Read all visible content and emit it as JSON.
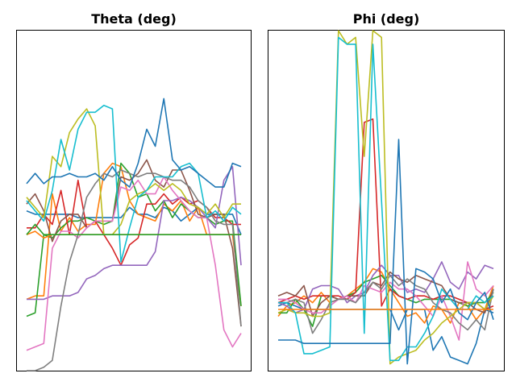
{
  "chart_data": [
    {
      "type": "line",
      "title": "Theta (deg)",
      "xlabel": "",
      "ylabel": "",
      "grid": false,
      "ticks": false,
      "x": [
        0,
        1,
        2,
        3,
        4,
        5,
        6,
        7,
        8,
        9,
        10,
        11,
        12,
        13,
        14,
        15,
        16,
        17,
        18,
        19,
        20,
        21,
        22,
        23,
        24,
        25
      ],
      "ylim": [
        0,
        100
      ],
      "colors": [
        "#1f77b4",
        "#ff7f0e",
        "#2ca02c",
        "#d62728",
        "#9467bd",
        "#8c564b",
        "#e377c2",
        "#7f7f7f",
        "#bcbd22",
        "#17becf"
      ],
      "series": [
        {
          "values": [
            47,
            46,
            46,
            46,
            46,
            46,
            45,
            45,
            45,
            45,
            45,
            45,
            48,
            46,
            46,
            45,
            48,
            47,
            44,
            46,
            48,
            46,
            46,
            46,
            46,
            40
          ]
        },
        {
          "values": [
            21,
            22,
            22,
            52,
            41,
            45,
            41,
            43,
            43,
            58,
            61,
            60,
            50,
            46,
            45,
            44,
            49,
            47,
            50,
            44,
            48,
            40,
            40,
            40,
            40,
            19
          ]
        },
        {
          "values": [
            16,
            17,
            40,
            39,
            42,
            44,
            44,
            45,
            44,
            43,
            44,
            61,
            58,
            51,
            52,
            47,
            50,
            45,
            49,
            47,
            45,
            45,
            43,
            44,
            44,
            19
          ]
        },
        {
          "values": [
            42,
            42,
            46,
            43,
            53,
            40,
            56,
            42,
            44,
            40,
            36,
            31,
            37,
            39,
            49,
            49,
            52,
            49,
            51,
            49,
            50,
            48,
            45,
            45,
            43,
            43
          ]
        },
        {
          "values": [
            21,
            21,
            21,
            22,
            22,
            22,
            23,
            27,
            28,
            30,
            31,
            31,
            31,
            31,
            31,
            35,
            50,
            50,
            51,
            50,
            48,
            45,
            42,
            56,
            60,
            31
          ]
        },
        {
          "values": [
            49,
            52,
            47,
            38,
            44,
            46,
            46,
            42,
            44,
            44,
            44,
            57,
            56,
            58,
            62,
            56,
            54,
            59,
            59,
            53,
            46,
            45,
            46,
            46,
            36,
            13
          ]
        },
        {
          "values": [
            6,
            7,
            8,
            36,
            41,
            41,
            39,
            42,
            44,
            44,
            44,
            54,
            53,
            56,
            52,
            52,
            57,
            53,
            50,
            47,
            45,
            45,
            31,
            12,
            7,
            11
          ]
        },
        {
          "values": [
            0,
            0,
            1,
            3,
            19,
            32,
            40,
            51,
            55,
            58,
            57,
            59,
            58,
            57,
            58,
            58,
            57,
            56,
            56,
            54,
            50,
            48,
            44,
            43,
            43,
            13
          ]
        },
        {
          "values": [
            51,
            48,
            45,
            63,
            60,
            70,
            74,
            77,
            72,
            40,
            40,
            43,
            50,
            52,
            53,
            55,
            53,
            55,
            53,
            49,
            48,
            46,
            49,
            45,
            49,
            49
          ]
        },
        {
          "values": [
            50,
            47,
            44,
            53,
            68,
            59,
            71,
            76,
            76,
            78,
            77,
            32,
            42,
            51,
            53,
            57,
            57,
            57,
            60,
            61,
            58,
            45,
            47,
            44,
            48,
            46
          ]
        },
        {
          "values": [
            55,
            58,
            55,
            57,
            57,
            58,
            57,
            57,
            58,
            56,
            60,
            56,
            54,
            61,
            71,
            66,
            80,
            62,
            59,
            60,
            58,
            56,
            54,
            54,
            61,
            60
          ]
        },
        {
          "values": [
            40,
            41,
            39,
            40,
            40,
            40,
            40,
            40,
            40,
            40,
            40,
            40,
            40,
            40,
            40,
            40,
            40,
            40,
            40,
            40,
            40,
            40,
            40,
            40,
            40,
            40
          ]
        },
        {
          "values": [
            40,
            43,
            40,
            40,
            40,
            40,
            40,
            40,
            40,
            40,
            40,
            40,
            40,
            40,
            40,
            40,
            40,
            40,
            40,
            40,
            40,
            40,
            40,
            40,
            40,
            40
          ]
        }
      ]
    },
    {
      "type": "line",
      "title": "Phi (deg)",
      "xlabel": "",
      "ylabel": "",
      "grid": false,
      "ticks": false,
      "x": [
        0,
        1,
        2,
        3,
        4,
        5,
        6,
        7,
        8,
        9,
        10,
        11,
        12,
        13,
        14,
        15,
        16,
        17,
        18,
        19,
        20,
        21,
        22,
        23,
        24,
        25
      ],
      "ylim": [
        0,
        100
      ],
      "colors": [
        "#1f77b4",
        "#ff7f0e",
        "#2ca02c",
        "#d62728",
        "#9467bd",
        "#8c564b",
        "#e377c2",
        "#7f7f7f",
        "#bcbd22",
        "#17becf"
      ],
      "series": [
        {
          "values": [
            19,
            20,
            19,
            18,
            18,
            18,
            18,
            18,
            18,
            18,
            18,
            18,
            18,
            18,
            12,
            18,
            18,
            18,
            6,
            10,
            4,
            3,
            2,
            8,
            18,
            17
          ]
        },
        {
          "values": [
            16,
            19,
            20,
            22,
            20,
            23,
            20,
            21,
            22,
            24,
            26,
            30,
            29,
            24,
            20,
            16,
            17,
            14,
            19,
            18,
            14,
            20,
            19,
            15,
            18,
            25
          ]
        },
        {
          "values": [
            17,
            17,
            21,
            18,
            13,
            22,
            22,
            21,
            22,
            23,
            26,
            27,
            28,
            25,
            22,
            21,
            20,
            21,
            21,
            21,
            21,
            20,
            19,
            20,
            20,
            23
          ]
        },
        {
          "values": [
            20,
            21,
            22,
            21,
            22,
            22,
            22,
            22,
            21,
            23,
            73,
            74,
            19,
            24,
            22,
            21,
            22,
            22,
            21,
            22,
            22,
            21,
            20,
            20,
            18,
            19
          ]
        },
        {
          "values": [
            20,
            19,
            17,
            18,
            24,
            25,
            25,
            24,
            20,
            22,
            23,
            28,
            31,
            28,
            28,
            23,
            24,
            23,
            27,
            32,
            26,
            24,
            29,
            27,
            31,
            30
          ]
        },
        {
          "values": [
            22,
            23,
            22,
            25,
            16,
            20,
            22,
            21,
            22,
            22,
            22,
            26,
            25,
            29,
            27,
            26,
            28,
            27,
            26,
            25,
            21,
            20,
            20,
            18,
            17,
            24
          ]
        },
        {
          "values": [
            21,
            21,
            20,
            18,
            17,
            17,
            19,
            21,
            22,
            20,
            25,
            24,
            23,
            26,
            24,
            24,
            22,
            19,
            16,
            22,
            16,
            9,
            32,
            24,
            22,
            25
          ]
        },
        {
          "values": [
            20,
            20,
            21,
            20,
            11,
            15,
            20,
            21,
            21,
            20,
            23,
            26,
            24,
            28,
            25,
            27,
            25,
            24,
            20,
            18,
            17,
            14,
            12,
            15,
            12,
            24
          ]
        },
        {
          "values": [
            17,
            18,
            17,
            17,
            16,
            16,
            17,
            100,
            96,
            98,
            63,
            100,
            98,
            2,
            4,
            5,
            6,
            9,
            11,
            14,
            16,
            18,
            20,
            20,
            18,
            22
          ]
        },
        {
          "values": [
            20,
            20,
            17,
            5,
            5,
            6,
            7,
            98,
            96,
            96,
            11,
            96,
            50,
            3,
            3,
            7,
            7,
            11,
            16,
            24,
            21,
            18,
            18,
            22,
            20,
            22
          ]
        },
        {
          "values": [
            9,
            9,
            9,
            8,
            8,
            8,
            8,
            8,
            8,
            8,
            8,
            8,
            8,
            8,
            68,
            2,
            30,
            29,
            27,
            20,
            24,
            17,
            15,
            20,
            23,
            15
          ]
        },
        {
          "values": [
            18,
            18,
            18,
            18,
            18,
            18,
            18,
            18,
            18,
            18,
            18,
            18,
            18,
            18,
            18,
            18,
            18,
            18,
            18,
            18,
            18,
            18,
            18,
            18,
            18,
            18
          ]
        }
      ]
    }
  ]
}
